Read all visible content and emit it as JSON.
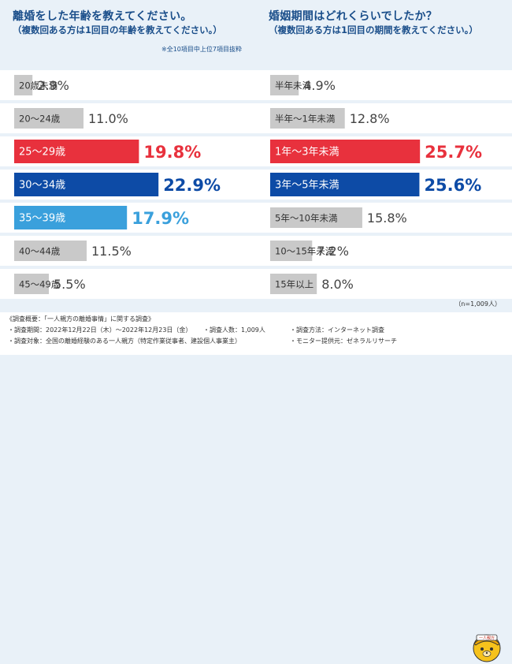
{
  "left": {
    "title": "離婚をした年齢を教えてください。",
    "subtitle": "（複数回ある方は1回目の年齢を教えてください。）",
    "note": "※全10項目中上位7項目抜粋"
  },
  "right": {
    "title": "婚姻期間はどれくらいでしたか？",
    "subtitle": "（複数回ある方は1回目の期間を教えてください。）",
    "n_note": "（n=1,009人）"
  },
  "colors": {
    "gray_bar": "#c9c9c9",
    "red_bar": "#e8313d",
    "blue_bar": "#0d4ba6",
    "light_blue_bar": "#3aa0dc",
    "title_color": "#1a4e8a"
  },
  "chart_data": [
    {
      "type": "bar",
      "orientation": "horizontal",
      "title": "離婚をした年齢を教えてください。",
      "categories": [
        "20歳未満",
        "20〜24歳",
        "25〜29歳",
        "30〜34歳",
        "35〜39歳",
        "40〜44歳",
        "45〜49歳"
      ],
      "values": [
        2.9,
        11.0,
        19.8,
        22.9,
        17.9,
        11.5,
        5.5
      ],
      "labels": [
        "2.9%",
        "11.0%",
        "19.8%",
        "22.9%",
        "17.9%",
        "11.5%",
        "5.5%"
      ],
      "highlights": [
        "gray",
        "gray",
        "red",
        "blue",
        "lightblue",
        "gray",
        "gray"
      ],
      "unit": "%"
    },
    {
      "type": "bar",
      "orientation": "horizontal",
      "title": "婚姻期間はどれくらいでしたか？",
      "categories": [
        "半年未満",
        "半年〜1年未満",
        "1年〜3年未満",
        "3年〜5年未満",
        "5年〜10年未満",
        "10〜15年未満",
        "15年以上"
      ],
      "values": [
        4.9,
        12.8,
        25.7,
        25.6,
        15.8,
        7.2,
        8.0
      ],
      "labels": [
        "4.9%",
        "12.8%",
        "25.7%",
        "25.6%",
        "15.8%",
        "7.2%",
        "8.0%"
      ],
      "highlights": [
        "gray",
        "gray",
        "red",
        "blue",
        "gray",
        "gray",
        "gray"
      ],
      "unit": "%"
    }
  ],
  "footer": {
    "heading": "《調査概要：「一人親方の離婚事情」に関する調査》",
    "period": "・調査期間：2022年12月22日（木）〜2022年12月23日（金）",
    "count": "・調査人数：1,009人",
    "method": "・調査方法：インターネット調査",
    "target": "・調査対象：全国の離婚経験のある一人親方（特定作業従事者、建設個人事業主）",
    "provider": "・モニター提供元：ゼネラルリサーチ",
    "mascot_label": "一人親方"
  }
}
